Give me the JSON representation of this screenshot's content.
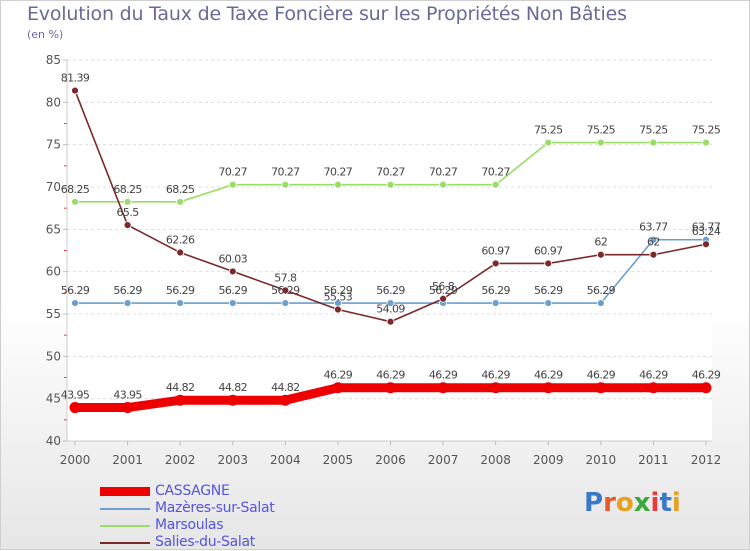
{
  "chart_data": {
    "type": "line",
    "title": "Evolution du Taux de Taxe Foncière sur les Propriétés Non Bâties",
    "subtitle": "(en %)",
    "xlabel": "",
    "ylabel": "",
    "ylim": [
      40,
      85
    ],
    "yticks": [
      40,
      45,
      50,
      55,
      60,
      65,
      70,
      75,
      80,
      85
    ],
    "grid": true,
    "categories": [
      "2000",
      "2001",
      "2002",
      "2003",
      "2004",
      "2005",
      "2006",
      "2007",
      "2008",
      "2009",
      "2010",
      "2011",
      "2012"
    ],
    "series": [
      {
        "name": "CASSAGNE",
        "color": "#ee0000",
        "values": [
          43.95,
          43.95,
          44.82,
          44.82,
          44.82,
          46.29,
          46.29,
          46.29,
          46.29,
          46.29,
          46.29,
          46.29,
          46.29
        ],
        "labels": [
          "43.95",
          "43.95",
          "44.82",
          "44.82",
          "44.82",
          "46.29",
          "46.29",
          "46.29",
          "46.29",
          "46.29",
          "46.29",
          "46.29",
          "46.29"
        ]
      },
      {
        "name": "Mazères-sur-Salat",
        "color": "#6a9fcf",
        "values": [
          56.29,
          56.29,
          56.29,
          56.29,
          56.29,
          56.29,
          56.29,
          56.29,
          56.29,
          56.29,
          56.29,
          63.77,
          63.77
        ],
        "labels": [
          "56.29",
          "56.29",
          "56.29",
          "56.29",
          "56.29",
          "56.29",
          "56.29",
          "56.29",
          "56.29",
          "56.29",
          "56.29",
          "63.77",
          "63.77"
        ]
      },
      {
        "name": "Marsoulas",
        "color": "#99dd66",
        "values": [
          68.25,
          68.25,
          68.25,
          70.27,
          70.27,
          70.27,
          70.27,
          70.27,
          70.27,
          75.25,
          75.25,
          75.25,
          75.25
        ],
        "labels": [
          "68.25",
          "68.25",
          "68.25",
          "70.27",
          "70.27",
          "70.27",
          "70.27",
          "70.27",
          "70.27",
          "75.25",
          "75.25",
          "75.25",
          "75.25"
        ]
      },
      {
        "name": "Salies-du-Salat",
        "color": "#7a2a2a",
        "values": [
          81.39,
          65.5,
          62.26,
          60.03,
          57.8,
          55.53,
          54.09,
          56.8,
          60.97,
          60.97,
          62,
          62,
          63.24
        ],
        "labels": [
          "81.39",
          "65.5",
          "62.26",
          "60.03",
          "57.8",
          "55.53",
          "54.09",
          "56.8",
          "60.97",
          "60.97",
          "62",
          "62",
          "63.24"
        ]
      }
    ]
  },
  "logo": {
    "text": "Proxiti"
  }
}
